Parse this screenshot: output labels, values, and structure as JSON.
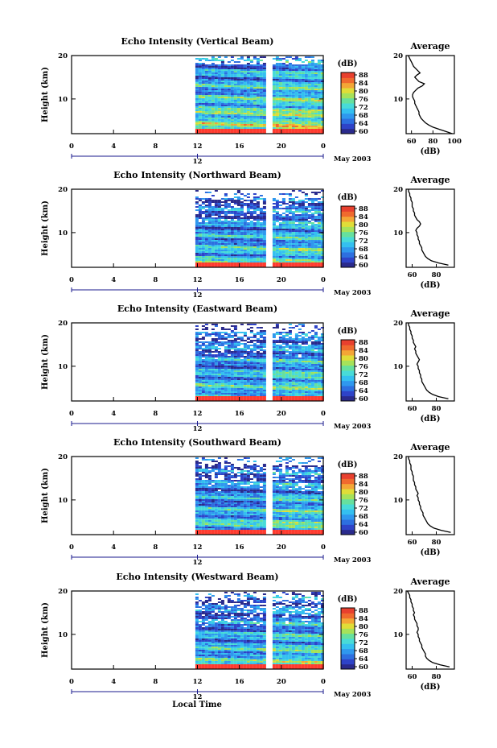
{
  "colors": {
    "scale": [
      "#2a2a8c",
      "#2e43c8",
      "#2d6fe0",
      "#2f98ee",
      "#34c0f0",
      "#48dbd8",
      "#66e09e",
      "#a6e25a",
      "#e0dd38",
      "#f4a636",
      "#f06a2e",
      "#e8402e"
    ],
    "saturation": "#ff3b2f",
    "line": "#000000"
  },
  "shared": {
    "month_label": "May 2003",
    "day_label": "12",
    "colorbar_unit": "(dB)",
    "colorbar_ticks": [
      "88",
      "84",
      "80",
      "76",
      "72",
      "68",
      "64",
      "60"
    ],
    "ylabel": "Height (km)",
    "yticks": [
      "20",
      "10"
    ],
    "xticks": [
      "0",
      "4",
      "8",
      "12",
      "16",
      "20",
      "0"
    ],
    "avg_title": "Average",
    "avg_xlabel": "(dB)",
    "xlabel": "Local Time"
  },
  "chart_data": [
    {
      "type": "heatmap",
      "title": "Echo Intensity (Vertical Beam)",
      "ylabel": "Height (km)",
      "xlabel": "Local Time",
      "x_range_hours": [
        0,
        24
      ],
      "y_range_km": [
        2,
        20
      ],
      "data_start_hour": 11.8,
      "gap_hours": [
        18.8,
        19.1
      ],
      "color_range_db": [
        60,
        88
      ],
      "average": {
        "title": "Average",
        "xlabel": "(dB)",
        "xticks": [
          "60",
          "80",
          "100"
        ],
        "xlim": [
          55,
          100
        ],
        "height_km": [
          2.0,
          2.5,
          3,
          3.5,
          4,
          4.5,
          5,
          5.5,
          6,
          6.5,
          7,
          7.5,
          8,
          8.5,
          9,
          9.5,
          10,
          10.5,
          11,
          11.5,
          12,
          12.5,
          13,
          13.5,
          14,
          14.5,
          15,
          15.5,
          16,
          16.5,
          17,
          17.5,
          18,
          18.5,
          19,
          19.5,
          20
        ],
        "intensity_db": [
          98,
          92,
          86,
          80,
          76,
          73,
          71,
          69,
          68,
          67,
          67,
          66,
          65,
          64,
          63,
          63,
          62,
          61,
          61,
          62,
          64,
          66,
          70,
          72,
          67,
          65,
          63,
          65,
          68,
          66,
          64,
          62,
          61,
          60,
          59,
          58,
          57
        ]
      }
    },
    {
      "type": "heatmap",
      "title": "Echo Intensity (Northward Beam)",
      "ylabel": "Height (km)",
      "x_range_hours": [
        0,
        24
      ],
      "y_range_km": [
        2,
        20
      ],
      "data_start_hour": 11.8,
      "gap_hours": [
        18.8,
        19.1
      ],
      "color_range_db": [
        60,
        88
      ],
      "average": {
        "title": "Average",
        "xlabel": "(dB)",
        "xticks": [
          "60",
          "80"
        ],
        "xlim": [
          55,
          95
        ],
        "height_km": [
          2.5,
          3,
          3.5,
          4,
          4.5,
          5,
          5.5,
          6,
          6.5,
          7,
          7.5,
          8,
          8.5,
          9,
          9.5,
          10,
          10.5,
          11,
          11.5,
          12,
          12.5,
          13,
          13.5,
          14,
          14.5,
          15,
          15.5,
          16,
          16.5,
          17,
          17.5,
          18,
          18.5,
          19,
          19.5,
          20
        ],
        "intensity_db": [
          90,
          82,
          76,
          73,
          71,
          70,
          69,
          68,
          68,
          67,
          66,
          66,
          65,
          65,
          64,
          64,
          63,
          64,
          66,
          67,
          66,
          64,
          63,
          62,
          62,
          61,
          61,
          60,
          60,
          60,
          59,
          59,
          58,
          58,
          57,
          57
        ]
      }
    },
    {
      "type": "heatmap",
      "title": "Echo Intensity (Eastward Beam)",
      "ylabel": "Height (km)",
      "x_range_hours": [
        0,
        24
      ],
      "y_range_km": [
        2,
        20
      ],
      "data_start_hour": 11.8,
      "gap_hours": [
        18.8,
        19.1
      ],
      "color_range_db": [
        60,
        88
      ],
      "average": {
        "title": "Average",
        "xlabel": "(dB)",
        "xticks": [
          "60",
          "80"
        ],
        "xlim": [
          55,
          95
        ],
        "height_km": [
          2.5,
          3,
          3.5,
          4,
          4.5,
          5,
          5.5,
          6,
          6.5,
          7,
          7.5,
          8,
          8.5,
          9,
          9.5,
          10,
          10.5,
          11,
          11.5,
          12,
          12.5,
          13,
          13.5,
          14,
          14.5,
          15,
          15.5,
          16,
          16.5,
          17,
          17.5,
          18,
          18.5,
          19,
          19.5,
          20
        ],
        "intensity_db": [
          90,
          82,
          77,
          74,
          72,
          71,
          70,
          69,
          68,
          68,
          67,
          67,
          66,
          66,
          65,
          65,
          64,
          65,
          66,
          65,
          64,
          63,
          63,
          62,
          63,
          62,
          61,
          61,
          60,
          60,
          59,
          59,
          58,
          58,
          57,
          57
        ]
      }
    },
    {
      "type": "heatmap",
      "title": "Echo Intensity (Southward Beam)",
      "ylabel": "Height (km)",
      "x_range_hours": [
        0,
        24
      ],
      "y_range_km": [
        2,
        20
      ],
      "data_start_hour": 11.8,
      "gap_hours": [
        18.8,
        19.1
      ],
      "color_range_db": [
        60,
        88
      ],
      "average": {
        "title": "Average",
        "xlabel": "(dB)",
        "xticks": [
          "60",
          "80"
        ],
        "xlim": [
          55,
          95
        ],
        "height_km": [
          2.5,
          3,
          3.5,
          4,
          4.5,
          5,
          5.5,
          6,
          6.5,
          7,
          7.5,
          8,
          8.5,
          9,
          9.5,
          10,
          10.5,
          11,
          11.5,
          12,
          12.5,
          13,
          13.5,
          14,
          14.5,
          15,
          15.5,
          16,
          16.5,
          17,
          17.5,
          18,
          18.5,
          19,
          19.5,
          20
        ],
        "intensity_db": [
          92,
          84,
          78,
          75,
          73,
          72,
          71,
          70,
          69,
          69,
          68,
          67,
          67,
          66,
          66,
          65,
          65,
          64,
          65,
          64,
          63,
          63,
          62,
          62,
          61,
          61,
          61,
          60,
          60,
          59,
          59,
          59,
          58,
          58,
          57,
          57
        ]
      }
    },
    {
      "type": "heatmap",
      "title": "Echo Intensity (Westward Beam)",
      "ylabel": "Height (km)",
      "xlabel": "Local Time",
      "x_range_hours": [
        0,
        24
      ],
      "y_range_km": [
        2,
        20
      ],
      "data_start_hour": 11.8,
      "gap_hours": [
        18.8,
        19.1
      ],
      "color_range_db": [
        60,
        88
      ],
      "average": {
        "title": "Average",
        "xlabel": "(dB)",
        "xticks": [
          "60",
          "80"
        ],
        "xlim": [
          55,
          95
        ],
        "height_km": [
          2.5,
          3,
          3.5,
          4,
          4.5,
          5,
          5.5,
          6,
          6.5,
          7,
          7.5,
          8,
          8.5,
          9,
          9.5,
          10,
          10.5,
          11,
          11.5,
          12,
          12.5,
          13,
          13.5,
          14,
          14.5,
          15,
          15.5,
          16,
          16.5,
          17,
          17.5,
          18,
          18.5,
          19,
          19.5,
          20
        ],
        "intensity_db": [
          91,
          83,
          77,
          74,
          72,
          71,
          71,
          70,
          69,
          68,
          68,
          67,
          66,
          66,
          65,
          65,
          64,
          65,
          65,
          64,
          64,
          63,
          62,
          62,
          61,
          62,
          61,
          61,
          60,
          60,
          59,
          59,
          58,
          58,
          57,
          56
        ]
      }
    }
  ]
}
